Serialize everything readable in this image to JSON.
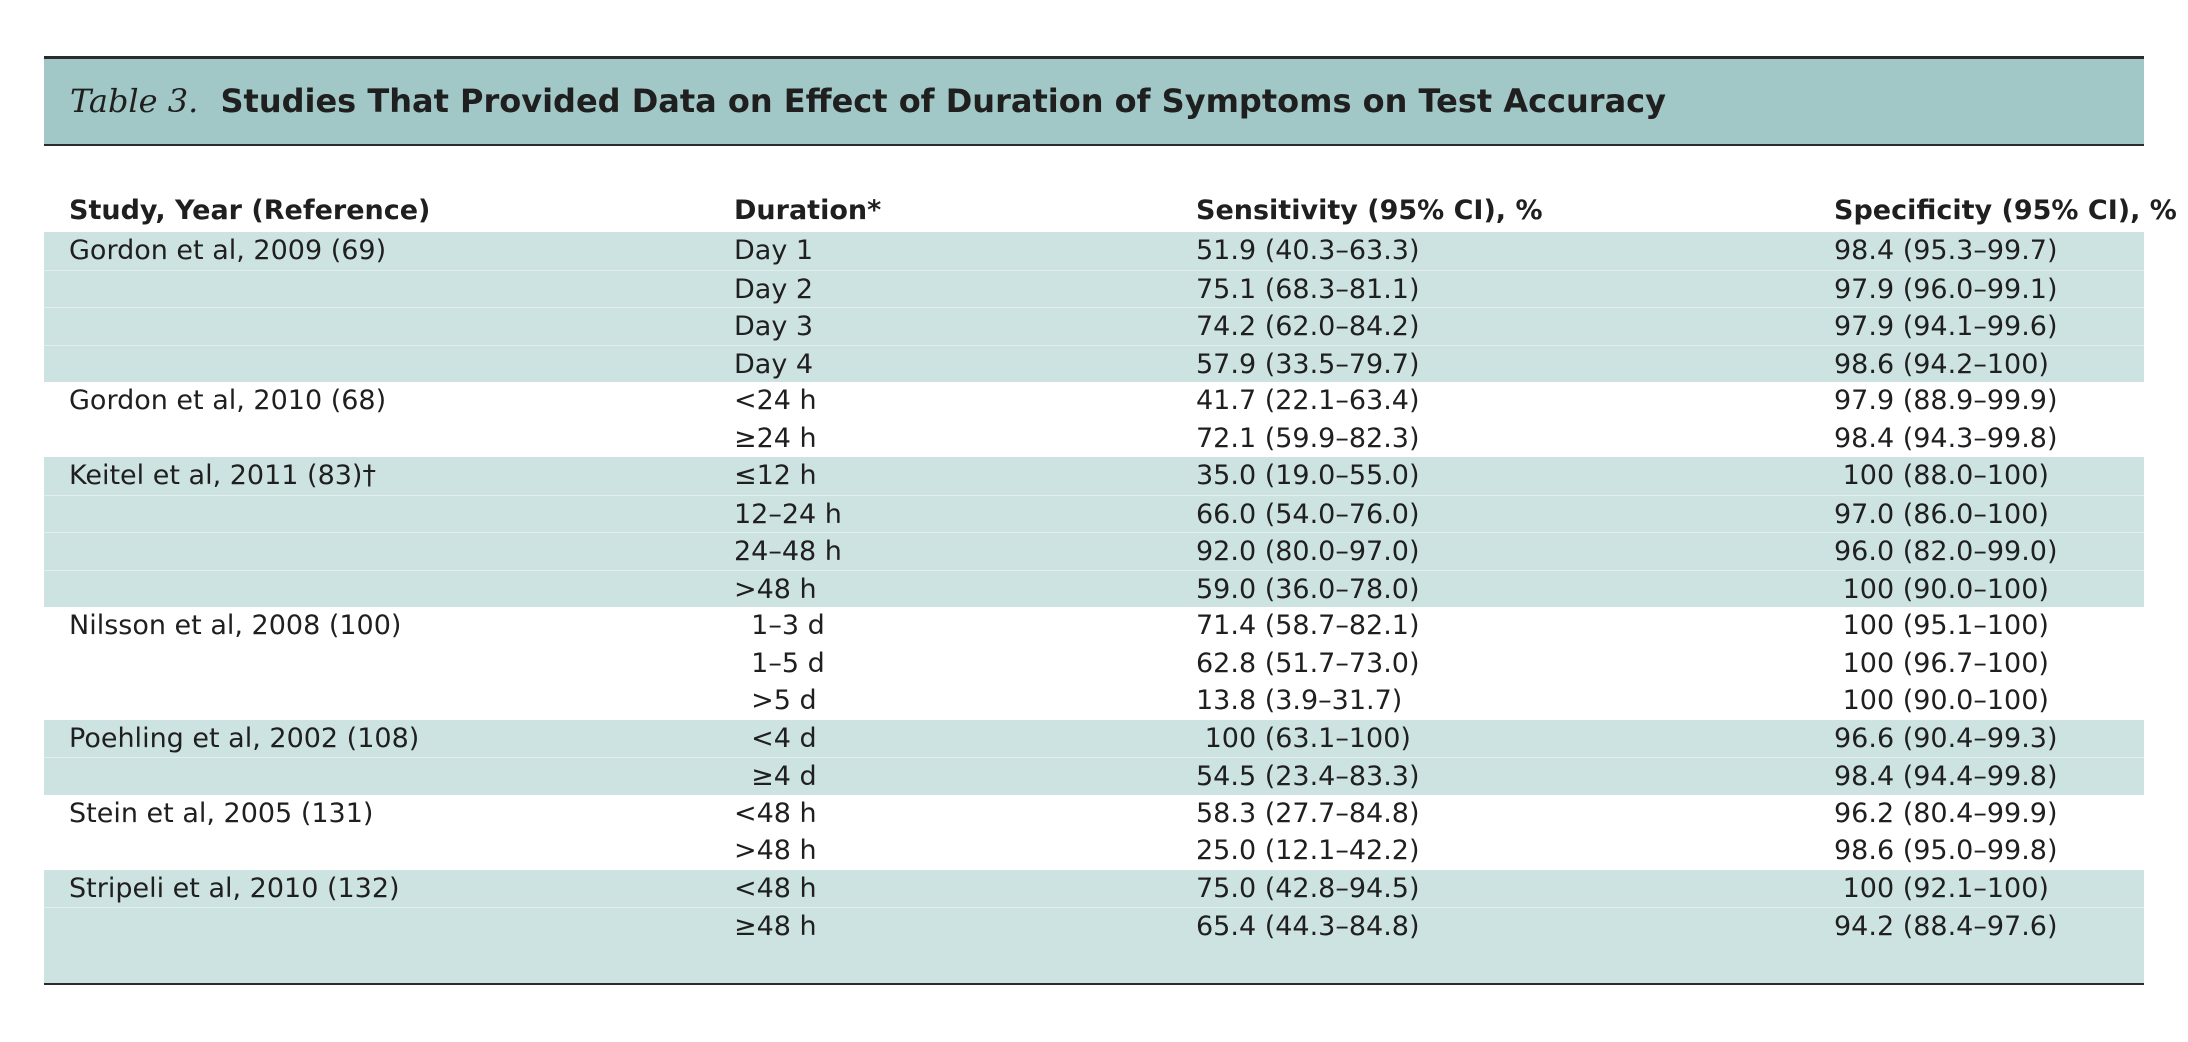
{
  "table": {
    "label": "Table 3.",
    "caption": "Studies That Provided Data on Effect of Duration of Symptoms on Test Accuracy",
    "headers": {
      "study": "Study, Year (Reference)",
      "duration": "Duration*",
      "sensitivity": "Sensitivity (95% CI), %",
      "specificity": "Specificity (95% CI), %"
    },
    "rows": [
      {
        "study": "Gordon et al, 2009 (69)",
        "duration": "Day 1",
        "sensitivity": "51.9 (40.3–63.3)",
        "specificity": "98.4 (95.3–99.7)",
        "shaded": true
      },
      {
        "study": "",
        "duration": "Day 2",
        "sensitivity": "75.1 (68.3–81.1)",
        "specificity": "97.9 (96.0–99.1)",
        "shaded": true
      },
      {
        "study": "",
        "duration": "Day 3",
        "sensitivity": "74.2 (62.0–84.2)",
        "specificity": "97.9 (94.1–99.6)",
        "shaded": true
      },
      {
        "study": "",
        "duration": "Day 4",
        "sensitivity": "57.9 (33.5–79.7)",
        "specificity": "98.6 (94.2–100)",
        "shaded": true
      },
      {
        "study": "Gordon et al, 2010 (68)",
        "duration": "<24 h",
        "sensitivity": "41.7 (22.1–63.4)",
        "specificity": "97.9 (88.9–99.9)",
        "shaded": false
      },
      {
        "study": "",
        "duration": "≥24 h",
        "sensitivity": "72.1 (59.9–82.3)",
        "specificity": "98.4 (94.3–99.8)",
        "shaded": false
      },
      {
        "study": "Keitel et al, 2011 (83)†",
        "duration": "≤12 h",
        "sensitivity": "35.0 (19.0–55.0)",
        "specificity": " 100 (88.0–100)",
        "shaded": true
      },
      {
        "study": "",
        "duration": "12–24 h",
        "sensitivity": "66.0 (54.0–76.0)",
        "specificity": "97.0 (86.0–100)",
        "shaded": true
      },
      {
        "study": "",
        "duration": "24–48 h",
        "sensitivity": "92.0 (80.0–97.0)",
        "specificity": "96.0 (82.0–99.0)",
        "shaded": true
      },
      {
        "study": "",
        "duration": ">48 h",
        "sensitivity": "59.0 (36.0–78.0)",
        "specificity": " 100 (90.0–100)",
        "shaded": true
      },
      {
        "study": "Nilsson et al, 2008 (100)",
        "duration": "  1–3 d",
        "sensitivity": "71.4 (58.7–82.1)",
        "specificity": " 100 (95.1–100)",
        "shaded": false
      },
      {
        "study": "",
        "duration": "  1–5 d",
        "sensitivity": "62.8 (51.7–73.0)",
        "specificity": " 100 (96.7–100)",
        "shaded": false
      },
      {
        "study": "",
        "duration": "  >5 d",
        "sensitivity": "13.8 (3.9–31.7)",
        "specificity": " 100 (90.0–100)",
        "shaded": false
      },
      {
        "study": "Poehling et al, 2002 (108)",
        "duration": "  <4 d",
        "sensitivity": " 100 (63.1–100)",
        "specificity": "96.6 (90.4–99.3)",
        "shaded": true
      },
      {
        "study": "",
        "duration": "  ≥4 d",
        "sensitivity": "54.5 (23.4–83.3)",
        "specificity": "98.4 (94.4–99.8)",
        "shaded": true
      },
      {
        "study": "Stein et al, 2005 (131)",
        "duration": "<48 h",
        "sensitivity": "58.3 (27.7–84.8)",
        "specificity": "96.2 (80.4–99.9)",
        "shaded": false
      },
      {
        "study": "",
        "duration": ">48 h",
        "sensitivity": "25.0 (12.1–42.2)",
        "specificity": "98.6 (95.0–99.8)",
        "shaded": false
      },
      {
        "study": "Stripeli et al, 2010 (132)",
        "duration": "<48 h",
        "sensitivity": "75.0 (42.8–94.5)",
        "specificity": " 100 (92.1–100)",
        "shaded": true
      },
      {
        "study": "",
        "duration": "≥48 h",
        "sensitivity": "65.4 (44.3–84.8)",
        "specificity": "94.2 (88.4–97.6)",
        "shaded": true
      }
    ]
  }
}
